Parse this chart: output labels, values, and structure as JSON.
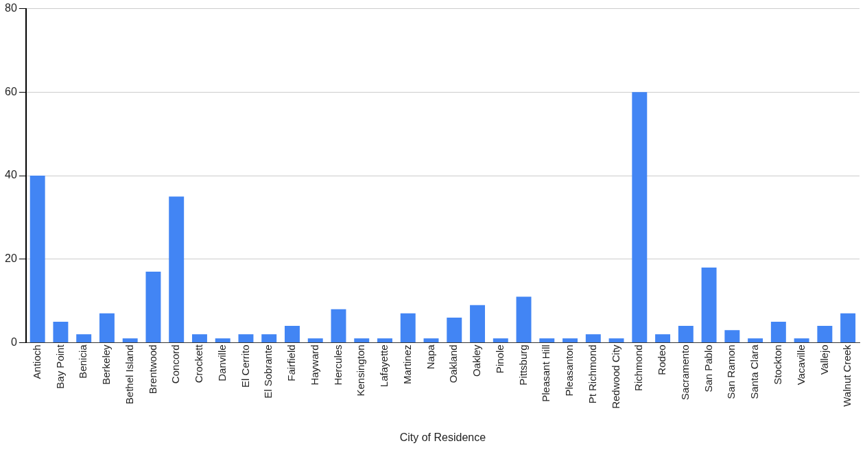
{
  "chart_data": {
    "type": "bar",
    "xlabel": "City of Residence",
    "categories": [
      "Antioch",
      "Bay Point",
      "Benicia",
      "Berkeley",
      "Bethel Island",
      "Brentwood",
      "Concord",
      "Crockett",
      "Danville",
      "El Cerrito",
      "El Sobrante",
      "Fairfield",
      "Hayward",
      "Hercules",
      "Kensington",
      "Lafayette",
      "Martinez",
      "Napa",
      "Oakland",
      "Oakley",
      "Pinole",
      "Pittsburg",
      "Pleasant Hill",
      "Pleasanton",
      "Pt Richmond",
      "Redwood City",
      "Richmond",
      "Rodeo",
      "Sacramento",
      "San Pablo",
      "San Ramon",
      "Santa Clara",
      "Stockton",
      "Vacaville",
      "Vallejo",
      "Walnut Creek"
    ],
    "values": [
      40,
      5,
      2,
      7,
      1,
      17,
      35,
      2,
      1,
      2,
      2,
      4,
      1,
      8,
      1,
      1,
      7,
      1,
      6,
      9,
      1,
      11,
      1,
      1,
      2,
      1,
      60,
      2,
      4,
      18,
      3,
      1,
      5,
      1,
      4,
      7
    ],
    "color": "#4285f4",
    "ylim": [
      0,
      80
    ],
    "yticks": [
      0,
      20,
      40,
      60,
      80
    ],
    "grid": "y",
    "legend": false
  }
}
